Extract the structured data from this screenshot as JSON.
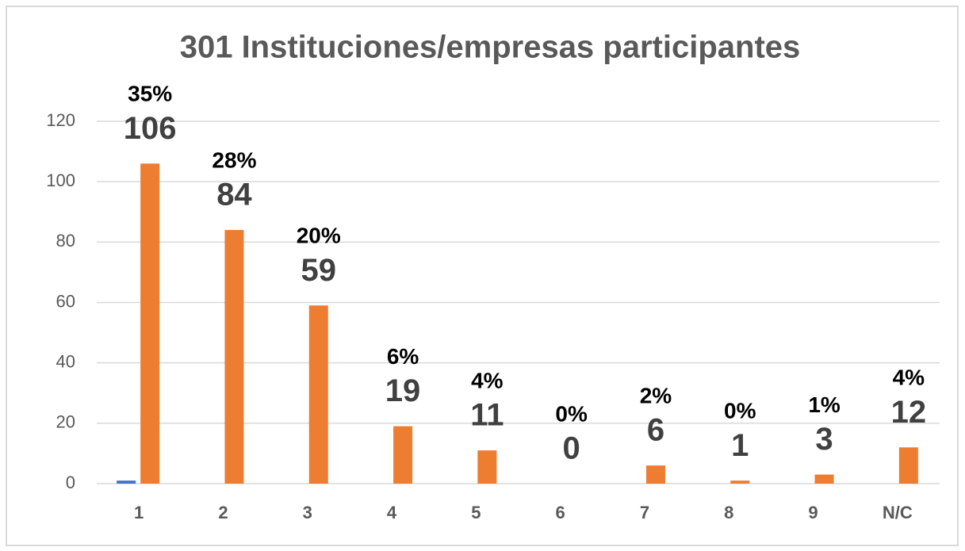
{
  "chart_data": {
    "type": "bar",
    "title": "301 Instituciones/empresas participantes",
    "categories": [
      "1",
      "2",
      "3",
      "4",
      "5",
      "6",
      "7",
      "8",
      "9",
      "N/C"
    ],
    "series": [
      {
        "color": "#4472c4",
        "values": [
          1,
          0,
          0,
          0,
          0,
          0,
          0,
          0,
          0,
          0
        ]
      },
      {
        "color": "#ed7d31",
        "values": [
          106,
          84,
          59,
          19,
          11,
          0,
          6,
          1,
          3,
          12
        ],
        "percentage_labels": [
          "35%",
          "28%",
          "20%",
          "6%",
          "4%",
          "0%",
          "2%",
          "0%",
          "1%",
          "4%"
        ]
      }
    ],
    "ylim": [
      0,
      120
    ],
    "yticks": [
      0,
      20,
      40,
      60,
      80,
      100,
      120
    ],
    "grid": true
  }
}
